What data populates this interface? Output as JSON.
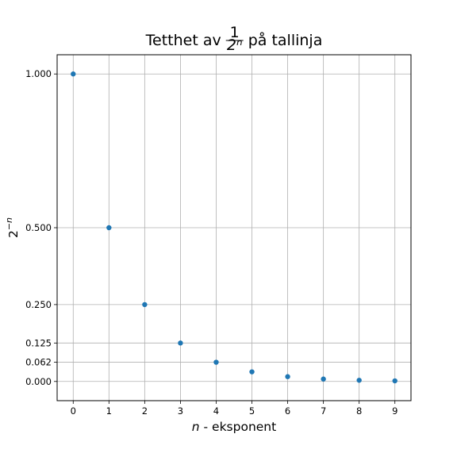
{
  "chart_data": {
    "type": "scatter",
    "title_prefix": "Tetthet av",
    "title_fraction_numerator": "1",
    "title_fraction_denominator": "2ⁿ",
    "title_suffix": "på tallinja",
    "xlabel_var": "n",
    "xlabel_rest": " - eksponent",
    "ylabel_base": "2",
    "ylabel_exp": "−n",
    "x": [
      0,
      1,
      2,
      3,
      4,
      5,
      6,
      7,
      8,
      9
    ],
    "y": [
      1.0,
      0.5,
      0.25,
      0.125,
      0.0625,
      0.03125,
      0.015625,
      0.0078125,
      0.00390625,
      0.001953125
    ],
    "xticks": [
      0,
      1,
      2,
      3,
      4,
      5,
      6,
      7,
      8,
      9
    ],
    "xtick_labels": [
      "0",
      "1",
      "2",
      "3",
      "4",
      "5",
      "6",
      "7",
      "8",
      "9"
    ],
    "yticks": [
      0.0,
      0.0625,
      0.125,
      0.25,
      0.5,
      1.0
    ],
    "ytick_labels": [
      "0.000",
      "0.062",
      "0.125",
      "0.250",
      "0.500",
      "1.000"
    ],
    "xlim": [
      -0.45,
      9.45
    ],
    "ylim": [
      -0.0625,
      1.0625
    ],
    "grid": true,
    "marker_color": "#1f77b4"
  }
}
